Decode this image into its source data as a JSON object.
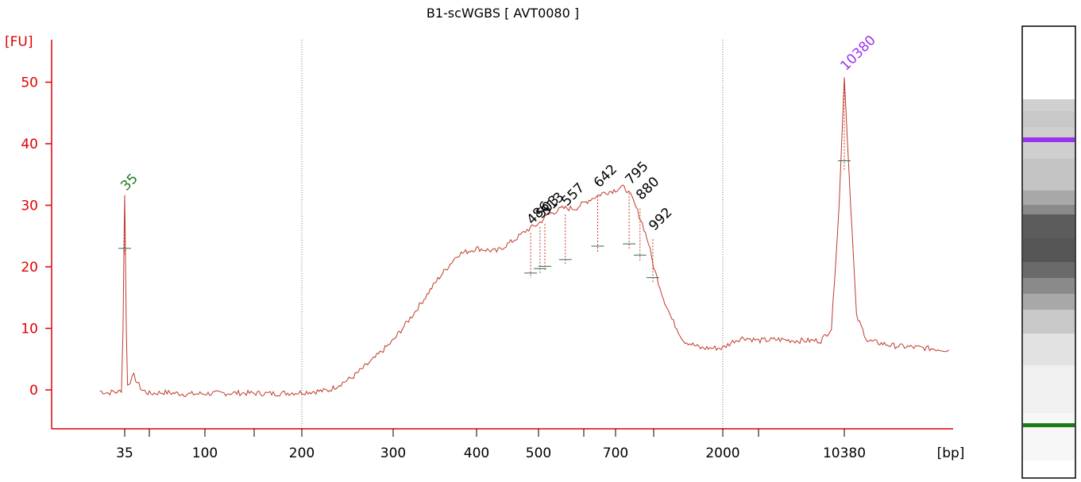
{
  "chart_data": {
    "type": "line",
    "title": "B1-scWGBS  [ AVT0080 ]",
    "ylabel": "[FU]",
    "xlabel": "[bp]",
    "ylim": [
      -6,
      58
    ],
    "yticks": [
      0,
      10,
      20,
      30,
      40,
      50
    ],
    "x_axis_scale": "sizing-ladder (non-linear)",
    "xticks": [
      "35",
      "",
      "100",
      "",
      "200",
      "300",
      "400",
      "500",
      "",
      "700",
      "",
      "2000",
      "",
      "10380"
    ],
    "xtick_positions": [
      35,
      50,
      100,
      150,
      200,
      300,
      400,
      500,
      600,
      700,
      1000,
      2000,
      4000,
      10380
    ],
    "vertical_guides_bp": [
      200,
      2000
    ],
    "colors": {
      "axis": "#e00000",
      "trace": "#c0392b",
      "lower_marker": "#1a7a1a",
      "upper_marker": "#9933ee",
      "baseline_mark": "#2e6b4e"
    },
    "series": [
      {
        "points": [
          [
            25,
            -0.2
          ],
          [
            28,
            -0.5
          ],
          [
            30,
            -0.3
          ],
          [
            32,
            -0.4
          ],
          [
            33.5,
            0
          ],
          [
            34.2,
            10
          ],
          [
            34.7,
            25
          ],
          [
            35,
            31.5
          ],
          [
            35.3,
            25
          ],
          [
            35.8,
            10
          ],
          [
            36.5,
            0.8
          ],
          [
            38,
            1.5
          ],
          [
            40,
            2.3
          ],
          [
            42,
            1.2
          ],
          [
            45,
            0
          ],
          [
            50,
            -0.6
          ],
          [
            60,
            -0.4
          ],
          [
            80,
            -0.7
          ],
          [
            100,
            -0.6
          ],
          [
            130,
            -0.5
          ],
          [
            170,
            -0.6
          ],
          [
            200,
            -0.4
          ],
          [
            225,
            -0.1
          ],
          [
            250,
            2
          ],
          [
            275,
            5
          ],
          [
            300,
            8
          ],
          [
            325,
            13
          ],
          [
            350,
            18
          ],
          [
            375,
            22
          ],
          [
            400,
            23
          ],
          [
            430,
            22.5
          ],
          [
            460,
            24.5
          ],
          [
            480,
            26
          ],
          [
            500,
            27
          ],
          [
            520,
            28.5
          ],
          [
            550,
            29.5
          ],
          [
            580,
            29.5
          ],
          [
            620,
            31
          ],
          [
            660,
            32
          ],
          [
            700,
            32.5
          ],
          [
            740,
            33
          ],
          [
            780,
            32.5
          ],
          [
            820,
            31
          ],
          [
            860,
            29
          ],
          [
            900,
            27
          ],
          [
            950,
            24
          ],
          [
            1000,
            20
          ],
          [
            1100,
            15
          ],
          [
            1200,
            11.5
          ],
          [
            1350,
            8
          ],
          [
            1600,
            6.8
          ],
          [
            2000,
            6.8
          ],
          [
            2500,
            8
          ],
          [
            3000,
            8.5
          ],
          [
            4000,
            8
          ],
          [
            5000,
            8.2
          ],
          [
            6000,
            8
          ],
          [
            8000,
            8
          ],
          [
            9000,
            10
          ],
          [
            9800,
            30
          ],
          [
            10380,
            51
          ],
          [
            10700,
            35
          ],
          [
            11200,
            12
          ],
          [
            12000,
            8
          ],
          [
            14000,
            7.2
          ],
          [
            17000,
            6.8
          ],
          [
            20000,
            6.5
          ]
        ]
      }
    ],
    "peaks": [
      {
        "label": "35",
        "x": 35,
        "y": 31.5,
        "type": "lower_marker"
      },
      {
        "label": "10380",
        "x": 10380,
        "y": 51,
        "type": "upper_marker"
      },
      {
        "label": "486",
        "x": 486,
        "y": 26
      },
      {
        "label": "503",
        "x": 503,
        "y": 27
      },
      {
        "label": "513",
        "x": 513,
        "y": 27.5
      },
      {
        "label": "557",
        "x": 557,
        "y": 29
      },
      {
        "label": "642",
        "x": 642,
        "y": 32
      },
      {
        "label": "795",
        "x": 795,
        "y": 32.5
      },
      {
        "label": "880",
        "x": 880,
        "y": 30
      },
      {
        "label": "992",
        "x": 992,
        "y": 25
      }
    ]
  },
  "gel": {
    "upper_marker_band": "10380",
    "lower_marker_band": "35"
  }
}
